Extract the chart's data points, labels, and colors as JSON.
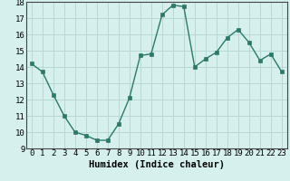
{
  "x": [
    0,
    1,
    2,
    3,
    4,
    5,
    6,
    7,
    8,
    9,
    10,
    11,
    12,
    13,
    14,
    15,
    16,
    17,
    18,
    19,
    20,
    21,
    22,
    23
  ],
  "y": [
    14.2,
    13.7,
    12.3,
    11.0,
    10.0,
    9.8,
    9.5,
    9.5,
    10.5,
    12.1,
    14.7,
    14.8,
    17.2,
    17.8,
    17.7,
    14.0,
    14.5,
    14.9,
    15.8,
    16.3,
    15.5,
    14.4,
    14.8,
    13.7
  ],
  "line_color": "#2a7a6a",
  "marker": "s",
  "marker_size": 2.5,
  "line_width": 1.0,
  "bg_color": "#d6f0ee",
  "grid_color": "#b8d8d4",
  "xlabel": "Humidex (Indice chaleur)",
  "ylim": [
    9,
    18
  ],
  "yticks": [
    9,
    10,
    11,
    12,
    13,
    14,
    15,
    16,
    17,
    18
  ],
  "xticks": [
    0,
    1,
    2,
    3,
    4,
    5,
    6,
    7,
    8,
    9,
    10,
    11,
    12,
    13,
    14,
    15,
    16,
    17,
    18,
    19,
    20,
    21,
    22,
    23
  ],
  "xlabel_fontsize": 7.5,
  "tick_fontsize": 6.5
}
